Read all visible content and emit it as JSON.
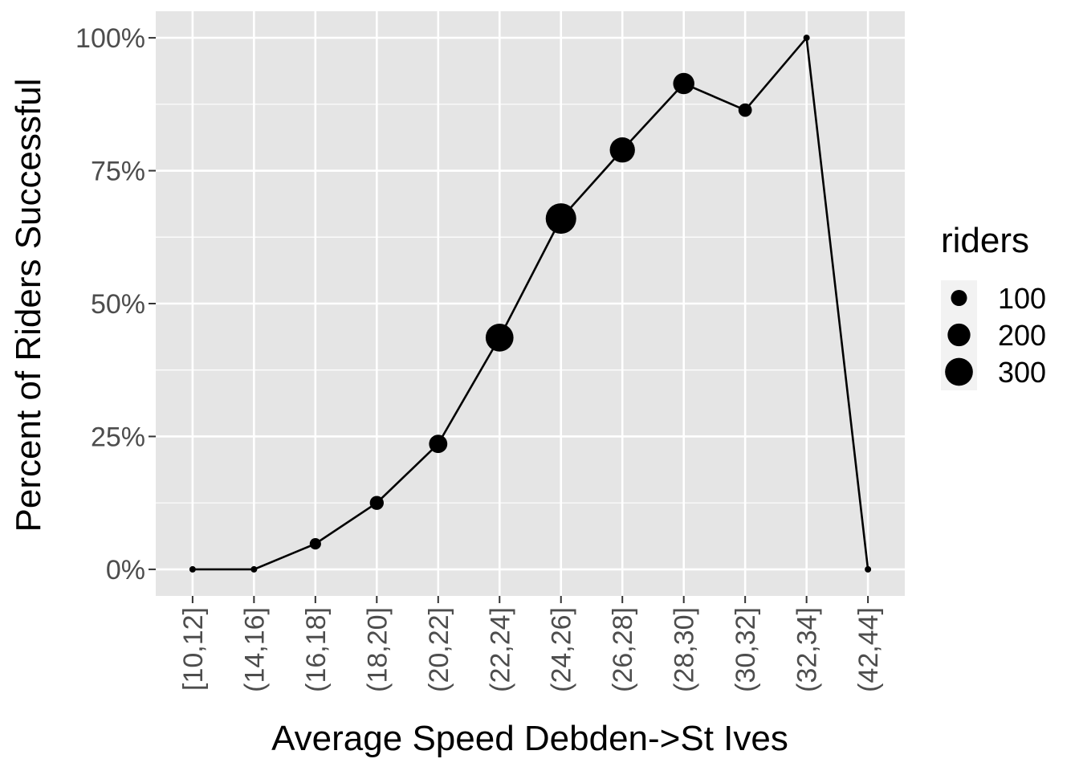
{
  "chart_data": {
    "type": "line",
    "xlabel": "Average Speed Debden->St Ives",
    "ylabel": "Percent of Riders Successful",
    "categories": [
      "[10,12]",
      "(14,16]",
      "(16,18]",
      "(18,20]",
      "(20,22]",
      "(22,24]",
      "(24,26]",
      "(26,28]",
      "(28,30]",
      "(30,32]",
      "(32,34]",
      "(42,44]"
    ],
    "series": [
      {
        "values": [
          0,
          0,
          4.8,
          12.5,
          23.6,
          43.6,
          66.0,
          78.9,
          91.4,
          86.4,
          100,
          0
        ],
        "riders": [
          4,
          8,
          50,
          75,
          130,
          300,
          360,
          245,
          175,
          70,
          4,
          2
        ]
      }
    ],
    "ylim": [
      -5,
      105
    ],
    "yticks": [
      0,
      25,
      50,
      75,
      100
    ],
    "ytick_labels": [
      "0%",
      "25%",
      "50%",
      "75%",
      "100%"
    ],
    "grid": true,
    "point_size_encoding": "riders",
    "legend": {
      "title": "riders",
      "position": "right",
      "entries": [
        {
          "label": "100",
          "value": 100
        },
        {
          "label": "200",
          "value": 200
        },
        {
          "label": "300",
          "value": 300
        }
      ]
    },
    "colors": {
      "panel_background": "#e5e5e5",
      "grid": "#ffffff",
      "line": "#000000",
      "point": "#000000",
      "tick_text": "#4d4d4d"
    }
  }
}
